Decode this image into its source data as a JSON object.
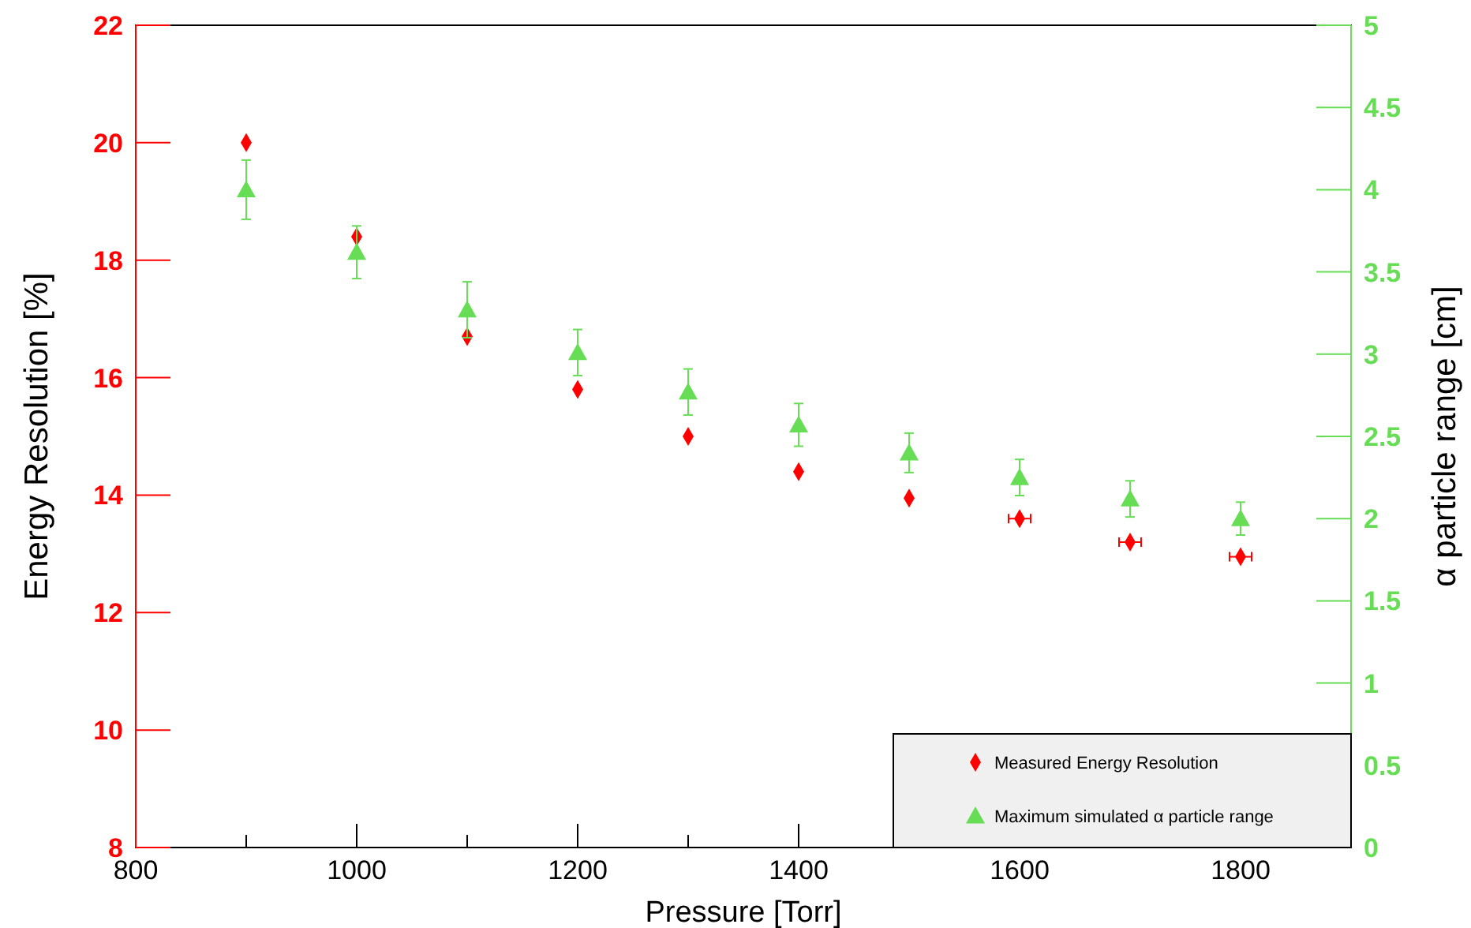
{
  "chart_data": {
    "type": "scatter",
    "xlabel": "Pressure [Torr]",
    "ylabel": "Energy Resolution [%]",
    "y2label": "α particle range [cm]",
    "x": [
      900,
      1000,
      1100,
      1200,
      1300,
      1400,
      1500,
      1600,
      1700,
      1800
    ],
    "xlim": [
      800,
      1900
    ],
    "xticks": [
      800,
      {
        "value": 900,
        "label": null
      },
      1000,
      {
        "value": 1100,
        "label": null
      },
      1200,
      {
        "value": 1300,
        "label": null
      },
      1400,
      {
        "value": 1500,
        "label": null
      },
      1600,
      {
        "value": 1700,
        "label": null
      },
      1800
    ],
    "ylim": [
      8,
      22
    ],
    "yticks": [
      8,
      10,
      12,
      14,
      16,
      18,
      20,
      22
    ],
    "y2lim": [
      0,
      5
    ],
    "y2ticks": [
      0,
      0.5,
      1,
      1.5,
      2,
      2.5,
      3,
      3.5,
      4,
      4.5,
      5
    ],
    "legend": "bottom right",
    "grid": false,
    "series": [
      {
        "name": "Measured Energy Resolution",
        "color": "#ff0000",
        "marker": "diamond",
        "values": [
          20.0,
          18.4,
          16.7,
          15.8,
          15.0,
          14.4,
          13.95,
          13.6,
          13.2,
          12.95
        ],
        "xerrors": [
          null,
          null,
          null,
          null,
          null,
          null,
          null,
          10,
          10,
          10
        ]
      },
      {
        "name": "Maximum simulated α particle range",
        "color": "#66dd55",
        "marker": "triangle",
        "axis": "y2",
        "values": [
          4.0,
          3.62,
          3.27,
          3.01,
          2.77,
          2.57,
          2.4,
          2.25,
          2.12,
          2.0
        ],
        "errors": [
          0.18,
          0.16,
          0.17,
          0.14,
          0.14,
          0.13,
          0.12,
          0.11,
          0.11,
          0.1
        ]
      }
    ]
  }
}
